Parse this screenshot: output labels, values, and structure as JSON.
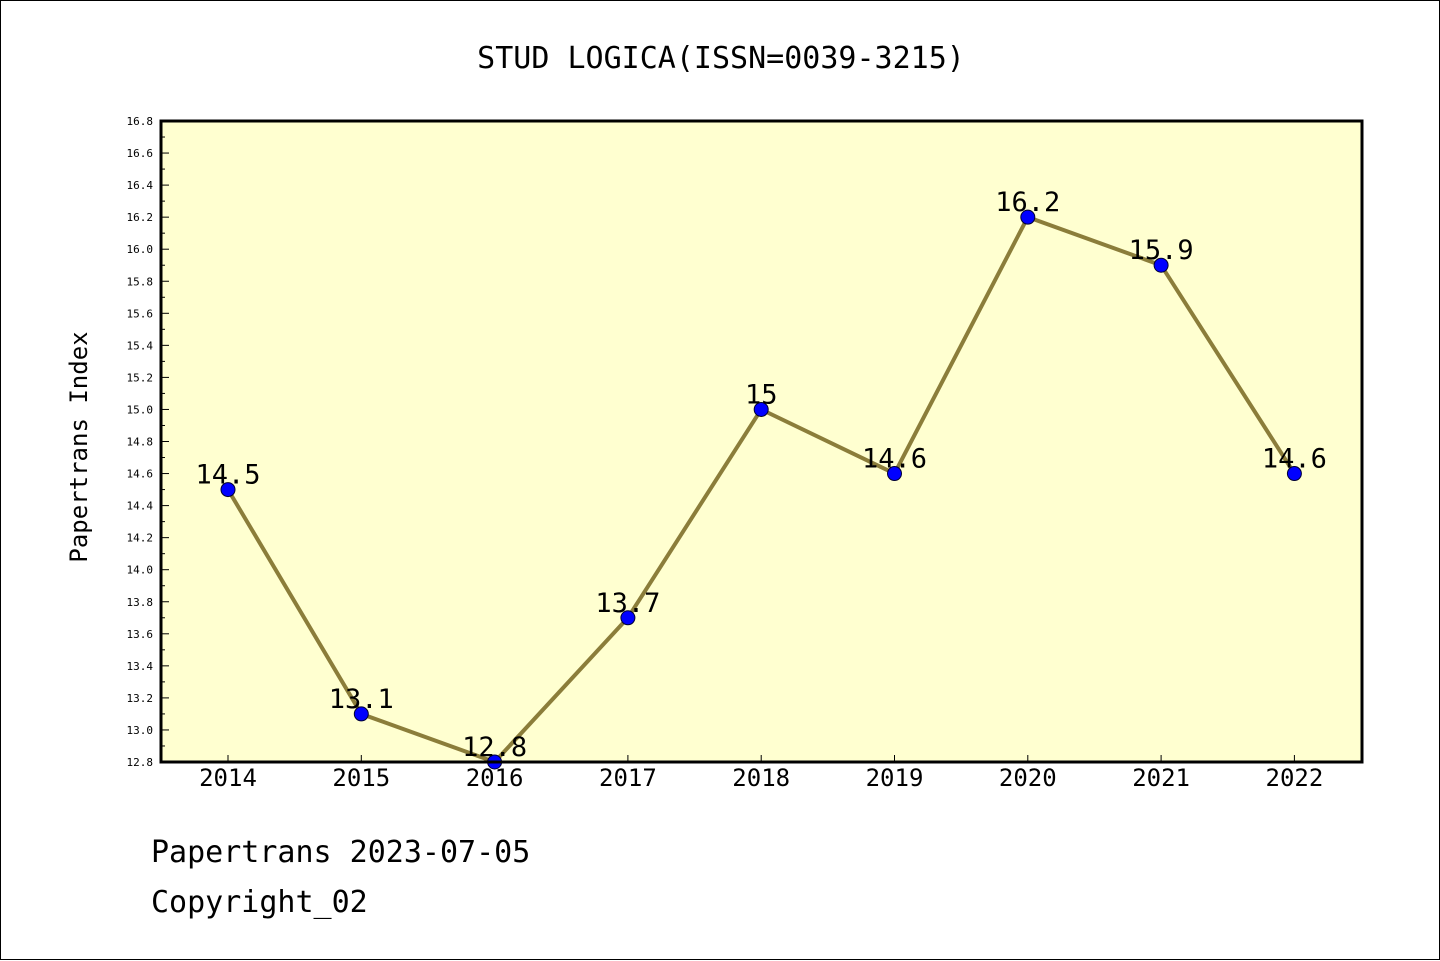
{
  "chart_data": {
    "type": "line",
    "title": "STUD LOGICA(ISSN=0039-3215)",
    "xlabel": "",
    "ylabel": "Papertrans Index",
    "categories": [
      "2014",
      "2015",
      "2016",
      "2017",
      "2018",
      "2019",
      "2020",
      "2021",
      "2022"
    ],
    "values": [
      14.5,
      13.1,
      12.8,
      13.7,
      15.0,
      14.6,
      16.2,
      15.9,
      14.6
    ],
    "data_labels": [
      "14.5",
      "13.1",
      "12.8",
      "13.7",
      "15",
      "14.6",
      "16.2",
      "15.9",
      "14.6"
    ],
    "ylim": [
      12.8,
      16.8
    ],
    "yticks": [
      "12.8",
      "13.0",
      "13.2",
      "13.4",
      "13.6",
      "13.8",
      "14.0",
      "14.2",
      "14.4",
      "14.6",
      "14.8",
      "15.0",
      "15.2",
      "15.4",
      "15.6",
      "15.8",
      "16.0",
      "16.2",
      "16.4",
      "16.6",
      "16.8"
    ],
    "grid": false,
    "colors": {
      "plot_background": "#ffffd0",
      "line": "#8b7d3a",
      "marker": "#0000ff"
    }
  },
  "footer": {
    "line1": "Papertrans 2023-07-05",
    "line2": "Copyright_02"
  }
}
